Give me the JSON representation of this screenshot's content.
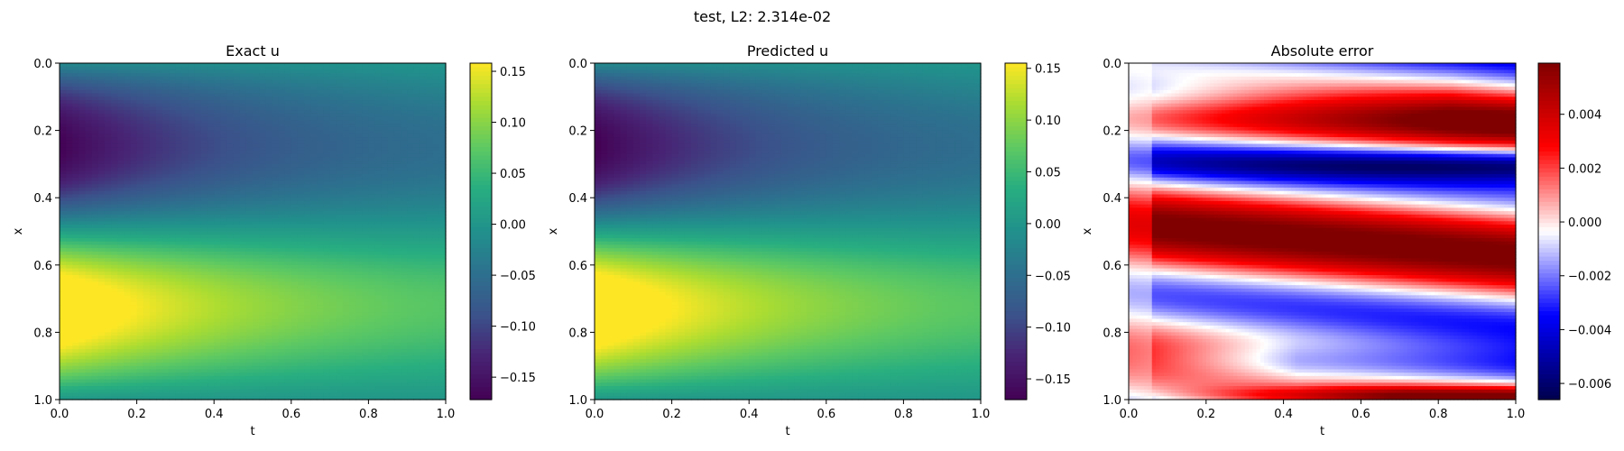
{
  "figure": {
    "suptitle": "test, L2: 2.314e-02"
  },
  "chart_data": [
    {
      "type": "heatmap",
      "title": "Exact u",
      "xlabel": "t",
      "ylabel": "x",
      "xlim": [
        0.0,
        1.0
      ],
      "ylim": [
        1.0,
        0.0
      ],
      "xticks": [
        0.0,
        0.2,
        0.4,
        0.6,
        0.8,
        1.0
      ],
      "xtick_labels": [
        "0.0",
        "0.2",
        "0.4",
        "0.6",
        "0.8",
        "1.0"
      ],
      "yticks": [
        0.0,
        0.2,
        0.4,
        0.6,
        0.8,
        1.0
      ],
      "ytick_labels": [
        "0.0",
        "0.2",
        "0.4",
        "0.6",
        "0.8",
        "1.0"
      ],
      "colormap": "viridis",
      "vmin": -0.172,
      "vmax": 0.158,
      "colorbar_ticks": [
        0.15,
        0.1,
        0.05,
        0.0,
        -0.05,
        -0.1,
        -0.15
      ],
      "colorbar_tick_labels": [
        "0.15",
        "0.10",
        "0.05",
        "0.00",
        "−0.05",
        "−0.10",
        "−0.15"
      ],
      "grid": false
    },
    {
      "type": "heatmap",
      "title": "Predicted u",
      "xlabel": "t",
      "ylabel": "x",
      "xlim": [
        0.0,
        1.0
      ],
      "ylim": [
        1.0,
        0.0
      ],
      "xticks": [
        0.0,
        0.2,
        0.4,
        0.6,
        0.8,
        1.0
      ],
      "xtick_labels": [
        "0.0",
        "0.2",
        "0.4",
        "0.6",
        "0.8",
        "1.0"
      ],
      "yticks": [
        0.0,
        0.2,
        0.4,
        0.6,
        0.8,
        1.0
      ],
      "ytick_labels": [
        "0.0",
        "0.2",
        "0.4",
        "0.6",
        "0.8",
        "1.0"
      ],
      "colormap": "viridis",
      "vmin": -0.17,
      "vmax": 0.155,
      "colorbar_ticks": [
        0.15,
        0.1,
        0.05,
        0.0,
        -0.05,
        -0.1,
        -0.15
      ],
      "colorbar_tick_labels": [
        "0.15",
        "0.10",
        "0.05",
        "0.00",
        "−0.05",
        "−0.10",
        "−0.15"
      ],
      "grid": false
    },
    {
      "type": "heatmap",
      "title": "Absolute error",
      "xlabel": "t",
      "ylabel": "x",
      "xlim": [
        0.0,
        1.0
      ],
      "ylim": [
        1.0,
        0.0
      ],
      "xticks": [
        0.0,
        0.2,
        0.4,
        0.6,
        0.8,
        1.0
      ],
      "xtick_labels": [
        "0.0",
        "0.2",
        "0.4",
        "0.6",
        "0.8",
        "1.0"
      ],
      "yticks": [
        0.0,
        0.2,
        0.4,
        0.6,
        0.8,
        1.0
      ],
      "ytick_labels": [
        "0.0",
        "0.2",
        "0.4",
        "0.6",
        "0.8",
        "1.0"
      ],
      "colormap": "seismic",
      "vmin": -0.0066,
      "vmax": 0.0059,
      "colorbar_ticks": [
        0.004,
        0.002,
        0.0,
        -0.002,
        -0.004,
        -0.006
      ],
      "colorbar_tick_labels": [
        "0.004",
        "0.002",
        "0.000",
        "−0.002",
        "−0.004",
        "−0.006"
      ],
      "grid": false
    }
  ]
}
